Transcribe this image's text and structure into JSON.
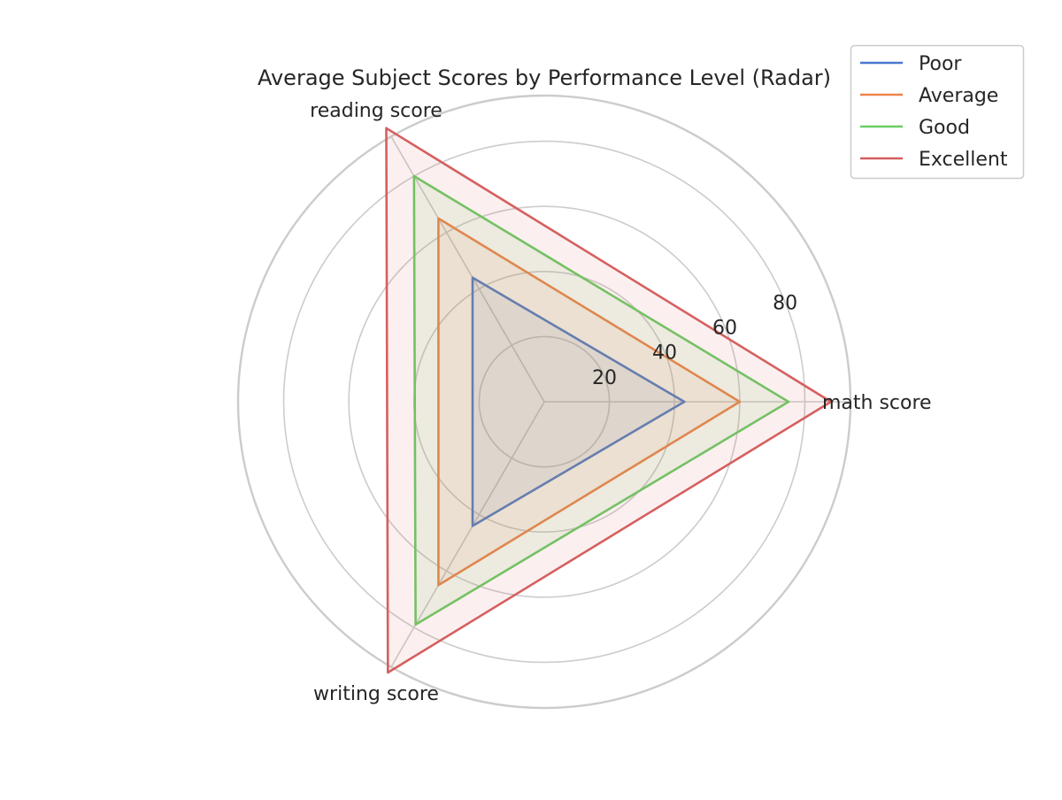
{
  "chart_data": {
    "type": "radar",
    "title": "Average Subject Scores by Performance Level (Radar)",
    "axes": [
      "math score",
      "reading score",
      "writing score"
    ],
    "rlim": [
      0,
      94
    ],
    "radial_ticks": [
      20,
      40,
      60,
      80
    ],
    "grid": true,
    "legend_position": "top-right",
    "series": [
      {
        "name": "Poor",
        "color": "#4878d0",
        "values": [
          43,
          44,
          44
        ]
      },
      {
        "name": "Average",
        "color": "#ee854a",
        "values": [
          60,
          65,
          65
        ]
      },
      {
        "name": "Good",
        "color": "#6acc64",
        "values": [
          75,
          80,
          79
        ]
      },
      {
        "name": "Excellent",
        "color": "#d65f5f",
        "values": [
          88,
          97,
          96
        ]
      }
    ]
  }
}
